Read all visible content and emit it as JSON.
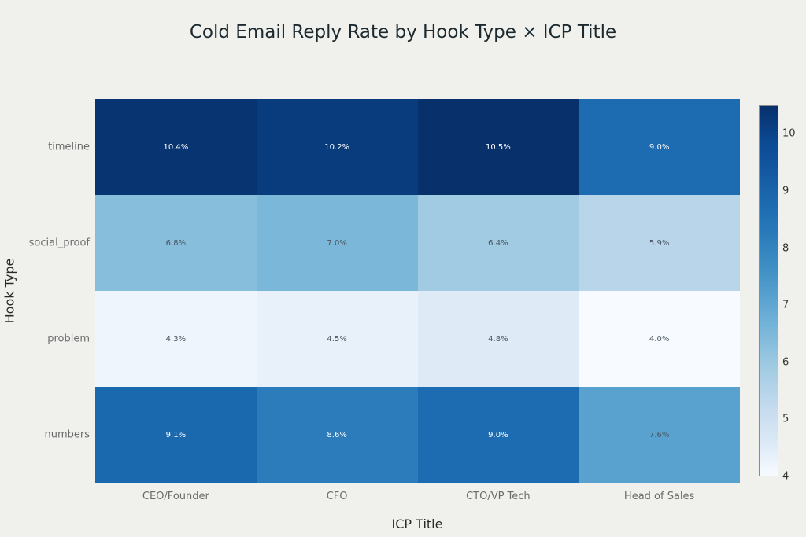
{
  "title": "Cold Email Reply Rate by Hook Type × ICP Title",
  "axes": {
    "xlabel": "ICP Title",
    "ylabel": "Hook Type",
    "x_ticks": [
      "CEO/Founder",
      "CFO",
      "CTO/VP Tech",
      "Head of Sales"
    ],
    "y_ticks": [
      "timeline",
      "social_proof",
      "problem",
      "numbers"
    ]
  },
  "cells": [
    [
      "10.4%",
      "10.2%",
      "10.5%",
      "9.0%"
    ],
    [
      "6.8%",
      "7.0%",
      "6.4%",
      "5.9%"
    ],
    [
      "4.3%",
      "4.5%",
      "4.8%",
      "4.0%"
    ],
    [
      "9.1%",
      "8.6%",
      "9.0%",
      "7.6%"
    ]
  ],
  "colorbar": {
    "ticks": [
      "10",
      "9",
      "8",
      "7",
      "6",
      "5",
      "4"
    ],
    "min": 4,
    "max": 10.5,
    "colorscale": "Blues"
  },
  "colors": {
    "background": "#f0f1ed",
    "scale_low": "#f7fbff",
    "scale_high": "#08306b"
  },
  "chart_data": {
    "type": "heatmap",
    "title": "Cold Email Reply Rate by Hook Type × ICP Title",
    "xlabel": "ICP Title",
    "ylabel": "Hook Type",
    "x": [
      "CEO/Founder",
      "CFO",
      "CTO/VP Tech",
      "Head of Sales"
    ],
    "y": [
      "timeline",
      "social_proof",
      "problem",
      "numbers"
    ],
    "z": [
      [
        10.4,
        10.2,
        10.5,
        9.0
      ],
      [
        6.8,
        7.0,
        6.4,
        5.9
      ],
      [
        4.3,
        4.5,
        4.8,
        4.0
      ],
      [
        9.1,
        8.6,
        9.0,
        7.6
      ]
    ],
    "value_format": "percent_1dp",
    "colorscale": "Blues",
    "zlim": [
      4.0,
      10.5
    ],
    "colorbar_ticks": [
      4,
      5,
      6,
      7,
      8,
      9,
      10
    ],
    "grid": false
  }
}
